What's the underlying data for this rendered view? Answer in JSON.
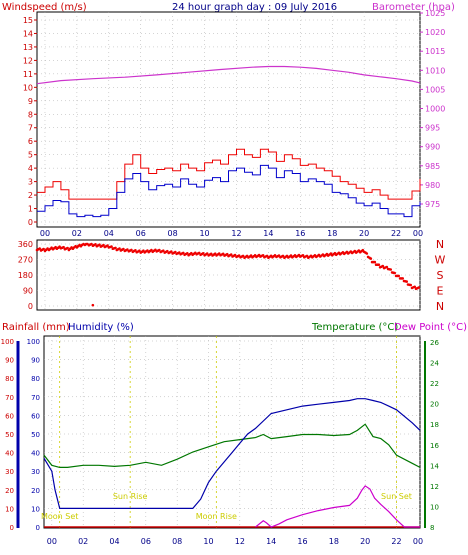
{
  "title": "24 hour graph day : 09 July 2016",
  "colors": {
    "wind": "#cc0000",
    "gust": "#ee0000",
    "baro": "#cc33cc",
    "humidity": "#0000aa",
    "temp": "#007700",
    "dew": "#cc00cc",
    "rain": "#cc0000",
    "annot": "#cccc00",
    "direction": "#ee0000",
    "grid": "#aaaaaa"
  },
  "x_ticks": [
    "00",
    "02",
    "04",
    "06",
    "08",
    "10",
    "12",
    "14",
    "16",
    "18",
    "20",
    "22",
    "00"
  ],
  "chart_data": [
    {
      "type": "line",
      "ylabel_left": "Windspeed (m/s)",
      "ylabel_right": "Barometer (hpa)",
      "ylim_left": [
        0,
        15
      ],
      "ylim_right": [
        975,
        1025
      ],
      "y_ticks_left": [
        "0",
        "1",
        "2",
        "3",
        "4",
        "5",
        "6",
        "7",
        "8",
        "9",
        "10",
        "11",
        "12",
        "13",
        "14",
        "15"
      ],
      "y_ticks_right": [
        "975",
        "980",
        "985",
        "990",
        "995",
        "1000",
        "1005",
        "1010",
        "1015",
        "1020",
        "1025"
      ],
      "x_range": [
        -0.5,
        23.5
      ],
      "series": [
        {
          "name": "Windspeed",
          "x": [
            -0.5,
            0,
            0.5,
            1,
            1.5,
            2,
            2.5,
            3,
            3.5,
            4,
            4.5,
            5,
            5.5,
            6,
            6.5,
            7,
            7.5,
            8,
            8.5,
            9,
            9.5,
            10,
            10.5,
            11,
            11.5,
            12,
            12.5,
            13,
            13.5,
            14,
            14.5,
            15,
            15.5,
            16,
            16.5,
            17,
            17.5,
            18,
            18.5,
            19,
            19.5,
            20,
            20.5,
            21,
            21.5,
            22,
            22.5,
            23,
            23.5
          ],
          "values": [
            0.8,
            1.2,
            1.6,
            1.5,
            0.6,
            0.4,
            0.5,
            0.4,
            0.5,
            1.0,
            2.2,
            3.2,
            3.6,
            3.0,
            2.4,
            2.7,
            2.8,
            2.6,
            3.2,
            2.8,
            2.6,
            3.1,
            3.3,
            3.0,
            3.8,
            4.0,
            3.7,
            3.5,
            4.2,
            4.0,
            3.3,
            3.8,
            3.6,
            3.0,
            3.2,
            3.0,
            2.8,
            2.2,
            2.1,
            1.8,
            1.4,
            1.2,
            1.4,
            1.0,
            0.6,
            0.6,
            0.4,
            1.2,
            1.5
          ]
        },
        {
          "name": "Gust",
          "x": [
            -0.5,
            0,
            0.5,
            1,
            1.5,
            2,
            2.5,
            3,
            3.5,
            4,
            4.5,
            5,
            5.5,
            6,
            6.5,
            7,
            7.5,
            8,
            8.5,
            9,
            9.5,
            10,
            10.5,
            11,
            11.5,
            12,
            12.5,
            13,
            13.5,
            14,
            14.5,
            15,
            15.5,
            16,
            16.5,
            17,
            17.5,
            18,
            18.5,
            19,
            19.5,
            20,
            20.5,
            21,
            21.5,
            22,
            22.5,
            23,
            23.5
          ],
          "values": [
            2.2,
            2.6,
            3.0,
            2.4,
            1.7,
            1.7,
            1.7,
            1.7,
            1.7,
            1.7,
            3.0,
            4.3,
            5.0,
            4.0,
            3.6,
            3.9,
            4.0,
            3.8,
            4.3,
            4.0,
            3.8,
            4.4,
            4.6,
            4.3,
            5.0,
            5.4,
            5.0,
            4.8,
            5.4,
            5.2,
            4.5,
            5.0,
            4.7,
            4.2,
            4.3,
            4.0,
            3.8,
            3.4,
            3.0,
            2.8,
            2.5,
            2.2,
            2.4,
            2.0,
            1.7,
            1.7,
            1.7,
            2.3,
            3.2
          ]
        },
        {
          "name": "Barometer",
          "x": [
            -0.5,
            1,
            3,
            5,
            7,
            9,
            11,
            13,
            14,
            15,
            16,
            17,
            18,
            19,
            20,
            21,
            22,
            23,
            23.5
          ],
          "values": [
            1006.5,
            1007.3,
            1007.8,
            1008.2,
            1008.8,
            1009.5,
            1010.2,
            1010.8,
            1011.0,
            1011.0,
            1010.8,
            1010.5,
            1010.0,
            1009.5,
            1008.8,
            1008.3,
            1007.8,
            1007.2,
            1006.7
          ]
        }
      ]
    },
    {
      "type": "scatter",
      "ylabel_right_ticks": [
        "N",
        "W",
        "S",
        "E",
        "N"
      ],
      "ylim": [
        0,
        360
      ],
      "y_ticks_left": [
        "0",
        "90",
        "180",
        "270",
        "360"
      ],
      "x_range": [
        -0.5,
        23.5
      ],
      "series": [
        {
          "name": "Wind direction",
          "x": [
            -0.5,
            0,
            0.5,
            1,
            1.5,
            2,
            2.5,
            3,
            3.5,
            4,
            4.5,
            5,
            5.5,
            6,
            6.5,
            7,
            7.5,
            8,
            8.5,
            9,
            9.5,
            10,
            10.5,
            11,
            11.5,
            12,
            12.5,
            13,
            13.5,
            14,
            14.5,
            15,
            15.5,
            16,
            16.5,
            17,
            17.5,
            18,
            18.5,
            19,
            19.5,
            20,
            20.5,
            21,
            21.5,
            22,
            22.5,
            23,
            23.5
          ],
          "values": [
            330,
            325,
            335,
            340,
            330,
            345,
            360,
            355,
            350,
            345,
            330,
            325,
            320,
            315,
            318,
            322,
            315,
            310,
            305,
            300,
            305,
            300,
            298,
            300,
            295,
            290,
            285,
            288,
            292,
            285,
            290,
            285,
            288,
            292,
            285,
            290,
            295,
            300,
            305,
            310,
            315,
            320,
            260,
            230,
            220,
            180,
            150,
            110,
            100
          ]
        },
        {
          "name": "Outlier",
          "x": [
            3.0
          ],
          "values": [
            5
          ]
        }
      ]
    },
    {
      "type": "line",
      "ylabel_left": "Rainfall (mm)",
      "ylabel_left2": "Humidity (%)",
      "ylabel_right": "Temperature (°C)",
      "ylabel_right2": "Dew Point (°C)",
      "ylim_left": [
        0,
        100
      ],
      "ylim_right": [
        8,
        26
      ],
      "y_ticks_left": [
        "0",
        "10",
        "20",
        "30",
        "40",
        "50",
        "60",
        "70",
        "80",
        "90",
        "100"
      ],
      "y_ticks_right": [
        "8",
        "10",
        "12",
        "14",
        "16",
        "18",
        "20",
        "22",
        "24",
        "26"
      ],
      "x_range": [
        -0.5,
        23.5
      ],
      "series": [
        {
          "name": "Humidity",
          "x": [
            -0.5,
            0,
            0.2,
            0.5,
            1,
            2,
            3,
            4,
            5,
            6,
            7,
            8,
            8.5,
            9,
            9.5,
            10,
            10.5,
            11,
            11.5,
            12,
            12.5,
            13,
            13.5,
            14,
            15,
            16,
            17,
            18,
            19,
            19.5,
            20,
            20.5,
            21,
            21.5,
            22,
            23,
            23.5
          ],
          "values": [
            37,
            30,
            20,
            10,
            10,
            10,
            10,
            10,
            10,
            10,
            10,
            10,
            10,
            10,
            15,
            24,
            30,
            35,
            40,
            45,
            50,
            53,
            57,
            61,
            63,
            65,
            66,
            67,
            68,
            69,
            69,
            68,
            67,
            65,
            63,
            56,
            52
          ]
        },
        {
          "name": "Temperature",
          "x": [
            -0.5,
            0,
            0.5,
            1,
            2,
            3,
            4,
            5,
            6,
            7,
            8,
            9,
            10,
            11,
            12,
            13,
            13.5,
            14,
            15,
            16,
            17,
            18,
            19,
            19.5,
            20,
            20.5,
            21,
            21.5,
            22,
            23,
            23.5
          ],
          "values": [
            15.0,
            14.0,
            13.8,
            13.8,
            14.0,
            14.0,
            13.9,
            14.0,
            14.3,
            14.0,
            14.6,
            15.3,
            15.8,
            16.3,
            16.5,
            16.7,
            17.0,
            16.6,
            16.8,
            17.0,
            17.0,
            16.9,
            17.0,
            17.4,
            18.0,
            16.8,
            16.6,
            16.0,
            15.0,
            14.2,
            13.8
          ]
        },
        {
          "name": "Dew Point",
          "x": [
            13,
            13.5,
            13.7,
            14,
            14.5,
            15,
            16,
            17,
            18,
            19,
            19.5,
            19.8,
            20,
            20.3,
            20.6,
            21,
            21.5,
            22,
            22.5,
            23.5
          ],
          "values": [
            8.0,
            8.6,
            8.4,
            8.0,
            8.3,
            8.7,
            9.2,
            9.6,
            9.9,
            10.1,
            10.8,
            11.6,
            12.0,
            11.7,
            10.8,
            10.2,
            9.5,
            8.7,
            8.0,
            8.0
          ]
        },
        {
          "name": "Rainfall",
          "x": [
            -0.5,
            23.5
          ],
          "values": [
            0,
            0
          ]
        }
      ],
      "annotations": [
        {
          "text": "Moon Set",
          "x": 0.5
        },
        {
          "text": "Sun Rise",
          "x": 5.0
        },
        {
          "text": "Moon Rise",
          "x": 10.5
        },
        {
          "text": "Sun Set",
          "x": 22.0
        }
      ]
    }
  ]
}
